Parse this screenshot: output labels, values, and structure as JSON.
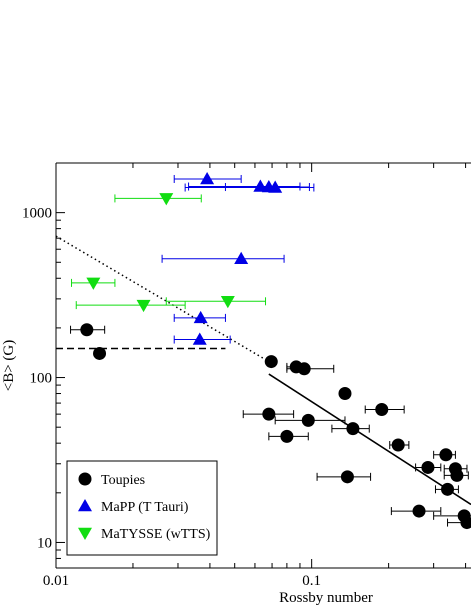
{
  "chart_data": {
    "type": "scatter",
    "title": "",
    "xlabel": "Rossby number",
    "ylabel": "<B> (G)",
    "x_scale": "log",
    "y_scale": "log",
    "xlim": [
      0.01,
      0.42
    ],
    "ylim": [
      7,
      2000
    ],
    "x_ticks": [
      {
        "value": 0.01,
        "label": "0.01"
      },
      {
        "value": 0.1,
        "label": "0.1"
      }
    ],
    "y_ticks": [
      {
        "value": 10,
        "label": "10"
      },
      {
        "value": 100,
        "label": "100"
      },
      {
        "value": 1000,
        "label": "1000"
      }
    ],
    "grid": false,
    "legend_position": "bottom-left",
    "colors": {
      "toupies": "#000000",
      "mapp": "#0000e6",
      "matysse": "#11dd11"
    },
    "series": [
      {
        "name": "Toupies",
        "marker": "circle",
        "color": "#000000",
        "points": [
          {
            "x": 0.0132,
            "y": 195,
            "xerr": [
              0.0114,
              0.0155
            ]
          },
          {
            "x": 0.0148,
            "y": 140
          },
          {
            "x": 0.0695,
            "y": 125
          },
          {
            "x": 0.087,
            "y": 116,
            "xerr": [
              0.08,
              0.095
            ]
          },
          {
            "x": 0.0935,
            "y": 113,
            "xerr": [
              0.08,
              0.122
            ]
          },
          {
            "x": 0.135,
            "y": 80
          },
          {
            "x": 0.068,
            "y": 60,
            "xerr": [
              0.054,
              0.085
            ]
          },
          {
            "x": 0.188,
            "y": 64,
            "xerr": [
              0.162,
              0.23
            ]
          },
          {
            "x": 0.097,
            "y": 55,
            "xerr": [
              0.072,
              0.135
            ]
          },
          {
            "x": 0.145,
            "y": 49,
            "xerr": [
              0.12,
              0.168
            ]
          },
          {
            "x": 0.08,
            "y": 44,
            "xerr": [
              0.068,
              0.097
            ]
          },
          {
            "x": 0.218,
            "y": 39,
            "xerr": [
              0.202,
              0.24
            ]
          },
          {
            "x": 0.335,
            "y": 34,
            "xerr": [
              0.3,
              0.365
            ]
          },
          {
            "x": 0.365,
            "y": 28,
            "xerr": [
              0.33,
              0.405
            ]
          },
          {
            "x": 0.285,
            "y": 28.5,
            "xerr": [
              0.255,
              0.32
            ]
          },
          {
            "x": 0.37,
            "y": 25.5,
            "xerr": [
              0.33,
              0.41
            ]
          },
          {
            "x": 0.34,
            "y": 21,
            "xerr": [
              0.305,
              0.375
            ]
          },
          {
            "x": 0.138,
            "y": 25,
            "xerr": [
              0.105,
              0.17
            ]
          },
          {
            "x": 0.263,
            "y": 15.5,
            "xerr": [
              0.205,
              0.32
            ]
          },
          {
            "x": 0.405,
            "y": 13.2,
            "xerr": [
              0.34,
              0.45
            ]
          },
          {
            "x": 0.395,
            "y": 14.5,
            "xerr": [
              0.3,
              0.45
            ]
          }
        ]
      },
      {
        "name": "MaPP (T Tauri)",
        "marker": "triangle-up",
        "color": "#0000e6",
        "points": [
          {
            "x": 0.039,
            "y": 1600,
            "xerr": [
              0.029,
              0.053
            ]
          },
          {
            "x": 0.063,
            "y": 1440,
            "xerr": [
              0.033,
              0.09
            ]
          },
          {
            "x": 0.068,
            "y": 1430,
            "xerr": [
              0.046,
              0.098
            ]
          },
          {
            "x": 0.072,
            "y": 1420,
            "xerr": [
              0.032,
              0.102
            ]
          },
          {
            "x": 0.053,
            "y": 525,
            "xerr": [
              0.026,
              0.078
            ]
          },
          {
            "x": 0.0368,
            "y": 230,
            "xerr": [
              0.029,
              0.046
            ]
          },
          {
            "x": 0.0365,
            "y": 170,
            "xerr": [
              0.029,
              0.048
            ]
          }
        ]
      },
      {
        "name": "MaTYSSE (wTTS)",
        "marker": "triangle-down",
        "color": "#11dd11",
        "points": [
          {
            "x": 0.027,
            "y": 1220,
            "xerr": [
              0.017,
              0.037
            ]
          },
          {
            "x": 0.014,
            "y": 375,
            "xerr": [
              0.0115,
              0.017
            ]
          },
          {
            "x": 0.022,
            "y": 275,
            "xerr": [
              0.012,
              0.032
            ]
          },
          {
            "x": 0.047,
            "y": 290,
            "xerr": [
              0.027,
              0.066
            ]
          }
        ]
      }
    ],
    "fit_lines": [
      {
        "style": "dotted",
        "points": [
          {
            "x": 0.01,
            "y": 720
          },
          {
            "x": 0.068,
            "y": 125
          }
        ]
      },
      {
        "style": "dashed",
        "points": [
          {
            "x": 0.01,
            "y": 150
          },
          {
            "x": 0.046,
            "y": 150
          }
        ]
      },
      {
        "style": "solid",
        "points": [
          {
            "x": 0.068,
            "y": 105
          },
          {
            "x": 0.42,
            "y": 17
          }
        ]
      }
    ]
  }
}
